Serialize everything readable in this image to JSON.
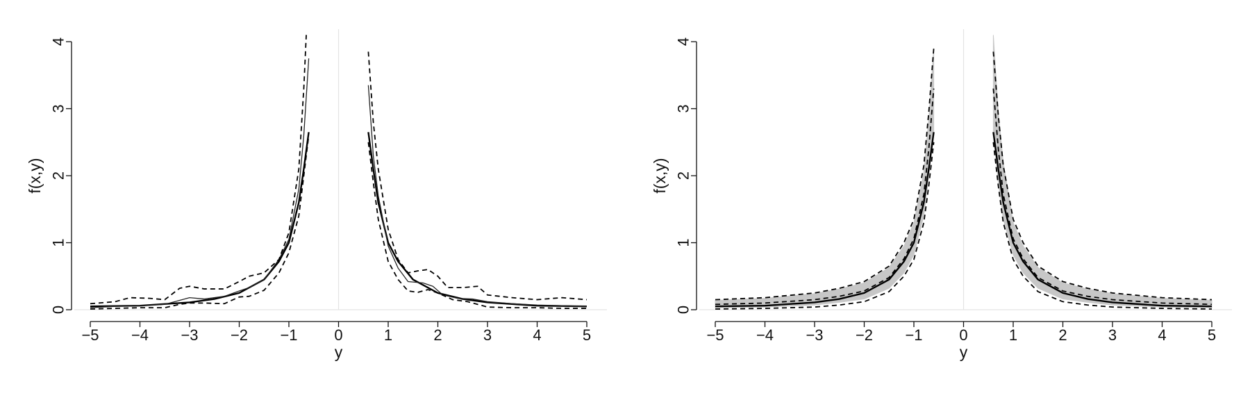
{
  "chart_data": [
    {
      "type": "line",
      "xlabel": "y",
      "ylabel": "f(x,y)",
      "xlim": [
        -5,
        5
      ],
      "ylim": [
        0,
        4
      ],
      "xticks": [
        -5,
        -4,
        -3,
        -2,
        -1,
        0,
        1,
        2,
        3,
        4,
        5
      ],
      "xtick_labels": [
        "−5",
        "−4",
        "−3",
        "−2",
        "−1",
        "0",
        "1",
        "2",
        "3",
        "4",
        "5"
      ],
      "yticks": [
        0,
        1,
        2,
        3,
        4
      ],
      "ytick_labels": [
        "0",
        "1",
        "2",
        "3",
        "4"
      ],
      "grid": false,
      "series": [
        {
          "style": "solid-thick",
          "color": "#000000",
          "segments": [
            {
              "x": [
                -5,
                -4,
                -3,
                -2.5,
                -2,
                -1.5,
                -1.2,
                -1.0,
                -0.8,
                -0.7,
                -0.6
              ],
              "y": [
                0.05,
                0.06,
                0.11,
                0.16,
                0.25,
                0.45,
                0.72,
                1.0,
                1.6,
                2.1,
                2.65
              ]
            },
            {
              "x": [
                0.6,
                0.7,
                0.8,
                1.0,
                1.2,
                1.5,
                2.0,
                2.5,
                3.0,
                4.0,
                5.0
              ],
              "y": [
                2.65,
                2.1,
                1.6,
                1.0,
                0.72,
                0.45,
                0.25,
                0.16,
                0.11,
                0.06,
                0.05
              ]
            }
          ]
        },
        {
          "style": "solid-thin",
          "color": "#222222",
          "segments": [
            {
              "x": [
                -5,
                -4.5,
                -4,
                -3.5,
                -3.2,
                -3.0,
                -2.7,
                -2.3,
                -2.0,
                -1.8,
                -1.5,
                -1.2,
                -1.0,
                -0.8,
                -0.7,
                -0.6
              ],
              "y": [
                0.03,
                0.05,
                0.06,
                0.08,
                0.14,
                0.18,
                0.16,
                0.2,
                0.28,
                0.33,
                0.45,
                0.75,
                1.05,
                1.8,
                2.6,
                3.75
              ]
            },
            {
              "x": [
                0.6,
                0.7,
                0.8,
                1.0,
                1.2,
                1.4,
                1.7,
                1.9,
                2.1,
                2.4,
                2.7,
                3.0,
                3.5,
                4.0,
                4.5,
                5.0
              ],
              "y": [
                3.35,
                2.3,
                1.7,
                0.95,
                0.62,
                0.42,
                0.4,
                0.35,
                0.22,
                0.17,
                0.16,
                0.12,
                0.09,
                0.07,
                0.06,
                0.05
              ]
            }
          ]
        },
        {
          "style": "dashed",
          "color": "#000000",
          "segments": [
            {
              "x": [
                -5,
                -4.5,
                -4.2,
                -3.8,
                -3.5,
                -3.2,
                -3.0,
                -2.7,
                -2.3,
                -2.0,
                -1.8,
                -1.5,
                -1.2,
                -1.0,
                -0.8,
                -0.7,
                -0.65
              ],
              "y": [
                0.09,
                0.12,
                0.18,
                0.17,
                0.15,
                0.32,
                0.35,
                0.31,
                0.31,
                0.42,
                0.5,
                0.55,
                0.75,
                1.15,
                2.1,
                3.3,
                4.1
              ]
            },
            {
              "x": [
                0.6,
                0.7,
                0.8,
                1.0,
                1.2,
                1.4,
                1.6,
                1.8,
                2.0,
                2.2,
                2.5,
                2.8,
                3.0,
                3.5,
                4.0,
                4.5,
                5.0
              ],
              "y": [
                3.85,
                2.8,
                2.1,
                1.2,
                0.75,
                0.55,
                0.58,
                0.6,
                0.5,
                0.33,
                0.33,
                0.35,
                0.22,
                0.18,
                0.15,
                0.18,
                0.15
              ]
            },
            {
              "x": [
                -5,
                -4.5,
                -4.0,
                -3.5,
                -3.2,
                -3.0,
                -2.7,
                -2.3,
                -2.0,
                -1.8,
                -1.5,
                -1.2,
                -1.0,
                -0.8,
                -0.7,
                -0.6
              ],
              "y": [
                0.01,
                0.02,
                0.03,
                0.03,
                0.08,
                0.1,
                0.1,
                0.09,
                0.19,
                0.2,
                0.29,
                0.55,
                0.85,
                1.4,
                2.0,
                2.6
              ]
            },
            {
              "x": [
                0.6,
                0.7,
                0.8,
                1.0,
                1.2,
                1.4,
                1.6,
                1.8,
                2.0,
                2.3,
                2.6,
                3.0,
                3.5,
                4.0,
                4.5,
                5.0
              ],
              "y": [
                2.5,
                1.9,
                1.35,
                0.72,
                0.45,
                0.28,
                0.26,
                0.3,
                0.25,
                0.15,
                0.12,
                0.04,
                0.03,
                0.03,
                0.02,
                0.02
              ]
            }
          ]
        }
      ]
    },
    {
      "type": "line",
      "xlabel": "y",
      "ylabel": "f(x,y)",
      "xlim": [
        -5,
        5
      ],
      "ylim": [
        0,
        4
      ],
      "xticks": [
        -5,
        -4,
        -3,
        -2,
        -1,
        0,
        1,
        2,
        3,
        4,
        5
      ],
      "xtick_labels": [
        "−5",
        "−4",
        "−3",
        "−2",
        "−1",
        "0",
        "1",
        "2",
        "3",
        "4",
        "5"
      ],
      "yticks": [
        0,
        1,
        2,
        3,
        4
      ],
      "ytick_labels": [
        "0",
        "1",
        "2",
        "3",
        "4"
      ],
      "grid": false,
      "series": [
        {
          "style": "grey-band",
          "color": "#bdbdbd",
          "segments": [
            {
              "x": [
                -5,
                -4,
                -3,
                -2.5,
                -2,
                -1.5,
                -1.2,
                -1.0,
                -0.8,
                -0.7,
                -0.6
              ],
              "y_low": [
                0.03,
                0.04,
                0.07,
                0.11,
                0.16,
                0.32,
                0.55,
                0.82,
                1.4,
                2.0,
                2.65
              ],
              "y_high": [
                0.14,
                0.17,
                0.24,
                0.31,
                0.4,
                0.63,
                0.95,
                1.3,
                2.05,
                2.85,
                3.9
              ]
            },
            {
              "x": [
                0.6,
                0.7,
                0.8,
                1.0,
                1.2,
                1.5,
                2.0,
                2.5,
                3.0,
                4.0,
                5.0
              ],
              "y_low": [
                2.65,
                1.9,
                1.35,
                0.82,
                0.55,
                0.32,
                0.16,
                0.11,
                0.07,
                0.04,
                0.03
              ],
              "y_high": [
                4.1,
                2.95,
                2.2,
                1.3,
                0.95,
                0.63,
                0.4,
                0.31,
                0.24,
                0.17,
                0.14
              ]
            }
          ]
        },
        {
          "style": "solid-thick",
          "color": "#000000",
          "segments": [
            {
              "x": [
                -5,
                -4,
                -3,
                -2.5,
                -2,
                -1.5,
                -1.2,
                -1.0,
                -0.8,
                -0.7,
                -0.6
              ],
              "y": [
                0.05,
                0.06,
                0.11,
                0.16,
                0.25,
                0.45,
                0.72,
                1.0,
                1.6,
                2.1,
                2.65
              ]
            },
            {
              "x": [
                0.6,
                0.7,
                0.8,
                1.0,
                1.2,
                1.5,
                2.0,
                2.5,
                3.0,
                4.0,
                5.0
              ],
              "y": [
                2.65,
                2.1,
                1.6,
                1.0,
                0.72,
                0.45,
                0.25,
                0.16,
                0.11,
                0.06,
                0.05
              ]
            }
          ]
        },
        {
          "style": "dashed",
          "color": "#000000",
          "segments": [
            {
              "x": [
                -5,
                -4,
                -3,
                -2.5,
                -2,
                -1.5,
                -1.2,
                -1.0,
                -0.8,
                -0.7,
                -0.6
              ],
              "y": [
                0.15,
                0.18,
                0.25,
                0.32,
                0.42,
                0.65,
                1.0,
                1.35,
                2.15,
                2.95,
                3.9
              ]
            },
            {
              "x": [
                0.6,
                0.7,
                0.8,
                1.0,
                1.2,
                1.5,
                2.0,
                2.5,
                3.0,
                4.0,
                5.0
              ],
              "y": [
                3.85,
                2.9,
                2.15,
                1.35,
                1.0,
                0.65,
                0.42,
                0.32,
                0.25,
                0.18,
                0.15
              ]
            },
            {
              "x": [
                -5,
                -4,
                -3,
                -2.5,
                -2,
                -1.5,
                -1.2,
                -1.0,
                -0.8,
                -0.7,
                -0.6
              ],
              "y": [
                0.01,
                0.02,
                0.04,
                0.07,
                0.12,
                0.27,
                0.5,
                0.75,
                1.3,
                1.85,
                2.5
              ]
            },
            {
              "x": [
                0.6,
                0.7,
                0.8,
                1.0,
                1.2,
                1.5,
                2.0,
                2.5,
                3.0,
                4.0,
                5.0
              ],
              "y": [
                2.5,
                1.85,
                1.3,
                0.75,
                0.5,
                0.27,
                0.12,
                0.07,
                0.04,
                0.02,
                0.01
              ]
            },
            {
              "x": [
                -5,
                -4,
                -3,
                -2.5,
                -2,
                -1.5,
                -1.2,
                -1.0,
                -0.8,
                -0.7,
                -0.6
              ],
              "y": [
                0.08,
                0.1,
                0.15,
                0.2,
                0.28,
                0.48,
                0.76,
                1.06,
                1.72,
                2.4,
                3.3
              ]
            },
            {
              "x": [
                0.6,
                0.7,
                0.8,
                1.0,
                1.2,
                1.5,
                2.0,
                2.5,
                3.0,
                4.0,
                5.0
              ],
              "y": [
                3.3,
                2.4,
                1.72,
                1.06,
                0.76,
                0.48,
                0.28,
                0.2,
                0.15,
                0.1,
                0.08
              ]
            }
          ]
        }
      ]
    }
  ]
}
